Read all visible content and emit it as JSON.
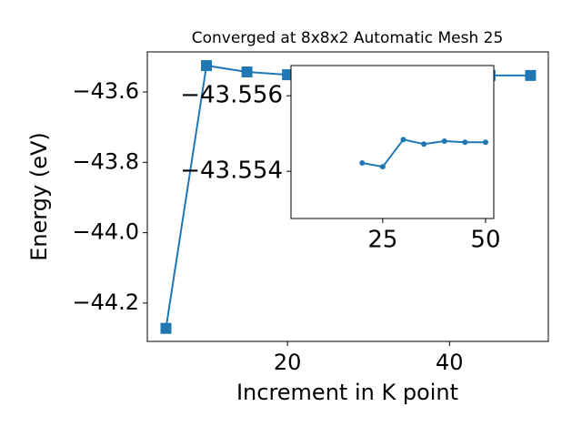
{
  "chart_data": [
    {
      "type": "line",
      "title": "Converged at 8x8x2 Automatic Mesh 25",
      "xlabel": "Increment in K point",
      "ylabel": "Energy (eV)",
      "x": [
        5,
        10,
        15,
        20,
        25,
        30,
        35,
        40,
        45,
        50
      ],
      "series": [
        {
          "color": "#1f77b4",
          "marker": "square",
          "values": [
            -44.272,
            -43.525,
            -43.543,
            -43.551,
            -43.553,
            -43.552,
            -43.553,
            -43.553,
            -43.553,
            -43.553
          ]
        }
      ],
      "xlim": [
        2.7,
        52.2
      ],
      "ylim": [
        -44.309,
        -43.486
      ],
      "xticks": [
        20,
        40
      ],
      "yticks": [
        {
          "value": -43.6,
          "label": "−43.6"
        },
        {
          "value": -43.8,
          "label": "−43.8"
        },
        {
          "value": -44.0,
          "label": "−44.0"
        },
        {
          "value": -44.2,
          "label": "−44.2"
        }
      ]
    },
    {
      "type": "line",
      "x": [
        20,
        25,
        30,
        35,
        40,
        45,
        50
      ],
      "series": [
        {
          "color": "#1f77b4",
          "marker": "circle",
          "values": [
            -43.55422,
            -43.55412,
            -43.55484,
            -43.55472,
            -43.5548,
            -43.55477,
            -43.55477
          ]
        }
      ],
      "xlim": [
        2.7,
        52
      ],
      "ylim": [
        -43.55275,
        -43.5568
      ],
      "xticks": [
        25,
        50
      ],
      "yticks": [
        {
          "value": -43.556,
          "label": "−43.556"
        },
        {
          "value": -43.554,
          "label": "−43.554"
        }
      ]
    }
  ]
}
